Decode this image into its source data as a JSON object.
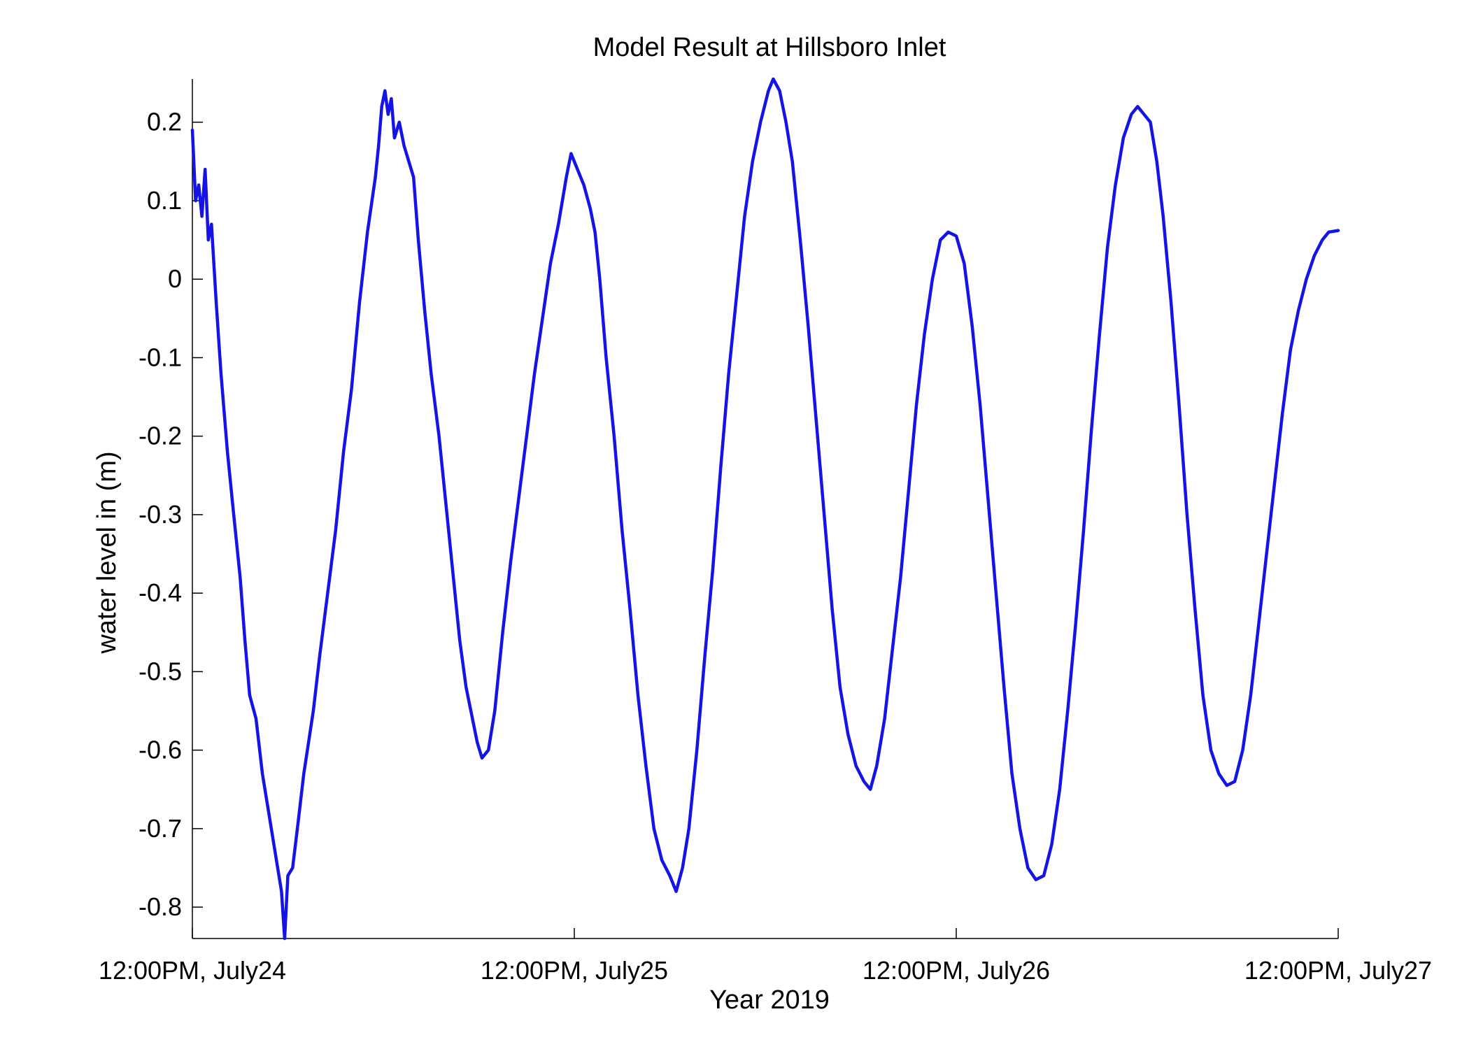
{
  "chart_data": {
    "type": "line",
    "title": "Model Result at Hillsboro Inlet",
    "xlabel": "Year 2019",
    "ylabel": "water level in (m)",
    "x_unit": "hours from 12:00PM, July24",
    "xlim": [
      0,
      72
    ],
    "ylim": [
      -0.84,
      0.255
    ],
    "x_ticks": [
      {
        "value": 0,
        "label": "12:00PM, July24"
      },
      {
        "value": 24,
        "label": "12:00PM, July25"
      },
      {
        "value": 48,
        "label": "12:00PM, July26"
      },
      {
        "value": 72,
        "label": "12:00PM, July27"
      }
    ],
    "y_ticks": [
      {
        "value": 0.2,
        "label": "0.2"
      },
      {
        "value": 0.1,
        "label": "0.1"
      },
      {
        "value": 0,
        "label": "0"
      },
      {
        "value": -0.1,
        "label": "-0.1"
      },
      {
        "value": -0.2,
        "label": "-0.2"
      },
      {
        "value": -0.3,
        "label": "-0.3"
      },
      {
        "value": -0.4,
        "label": "-0.4"
      },
      {
        "value": -0.5,
        "label": "-0.5"
      },
      {
        "value": -0.6,
        "label": "-0.6"
      },
      {
        "value": -0.7,
        "label": "-0.7"
      },
      {
        "value": -0.8,
        "label": "-0.8"
      }
    ],
    "grid": false,
    "legend": "none",
    "series": [
      {
        "color": "#1414e6",
        "points": [
          [
            0.0,
            0.19
          ],
          [
            0.2,
            0.1
          ],
          [
            0.4,
            0.12
          ],
          [
            0.6,
            0.08
          ],
          [
            0.8,
            0.14
          ],
          [
            1.0,
            0.05
          ],
          [
            1.2,
            0.07
          ],
          [
            1.5,
            -0.03
          ],
          [
            1.8,
            -0.12
          ],
          [
            2.2,
            -0.22
          ],
          [
            2.6,
            -0.3
          ],
          [
            3.0,
            -0.38
          ],
          [
            3.3,
            -0.46
          ],
          [
            3.6,
            -0.53
          ],
          [
            4.0,
            -0.56
          ],
          [
            4.4,
            -0.63
          ],
          [
            4.8,
            -0.68
          ],
          [
            5.2,
            -0.73
          ],
          [
            5.6,
            -0.78
          ],
          [
            5.8,
            -0.84
          ],
          [
            6.0,
            -0.76
          ],
          [
            6.3,
            -0.75
          ],
          [
            6.6,
            -0.7
          ],
          [
            7.0,
            -0.63
          ],
          [
            7.3,
            -0.59
          ],
          [
            7.6,
            -0.55
          ],
          [
            8.0,
            -0.48
          ],
          [
            8.5,
            -0.4
          ],
          [
            9.0,
            -0.32
          ],
          [
            9.5,
            -0.22
          ],
          [
            10.0,
            -0.14
          ],
          [
            10.5,
            -0.03
          ],
          [
            11.0,
            0.06
          ],
          [
            11.5,
            0.13
          ],
          [
            11.7,
            0.17
          ],
          [
            11.9,
            0.22
          ],
          [
            12.1,
            0.24
          ],
          [
            12.3,
            0.21
          ],
          [
            12.5,
            0.23
          ],
          [
            12.7,
            0.18
          ],
          [
            13.0,
            0.2
          ],
          [
            13.3,
            0.17
          ],
          [
            13.6,
            0.15
          ],
          [
            13.9,
            0.13
          ],
          [
            14.2,
            0.05
          ],
          [
            14.6,
            -0.04
          ],
          [
            15.0,
            -0.12
          ],
          [
            15.5,
            -0.2
          ],
          [
            16.0,
            -0.3
          ],
          [
            16.4,
            -0.38
          ],
          [
            16.8,
            -0.46
          ],
          [
            17.2,
            -0.52
          ],
          [
            17.6,
            -0.56
          ],
          [
            17.9,
            -0.59
          ],
          [
            18.2,
            -0.61
          ],
          [
            18.6,
            -0.6
          ],
          [
            19.0,
            -0.55
          ],
          [
            19.5,
            -0.45
          ],
          [
            20.0,
            -0.36
          ],
          [
            20.5,
            -0.28
          ],
          [
            21.0,
            -0.2
          ],
          [
            21.5,
            -0.12
          ],
          [
            22.0,
            -0.05
          ],
          [
            22.5,
            0.02
          ],
          [
            23.0,
            0.07
          ],
          [
            23.5,
            0.13
          ],
          [
            23.8,
            0.16
          ],
          [
            24.2,
            0.14
          ],
          [
            24.6,
            0.12
          ],
          [
            25.0,
            0.09
          ],
          [
            25.3,
            0.06
          ],
          [
            25.6,
            0.0
          ],
          [
            26.0,
            -0.1
          ],
          [
            26.5,
            -0.2
          ],
          [
            27.0,
            -0.32
          ],
          [
            27.5,
            -0.42
          ],
          [
            28.0,
            -0.53
          ],
          [
            28.5,
            -0.62
          ],
          [
            29.0,
            -0.7
          ],
          [
            29.5,
            -0.74
          ],
          [
            30.0,
            -0.76
          ],
          [
            30.4,
            -0.78
          ],
          [
            30.8,
            -0.75
          ],
          [
            31.2,
            -0.7
          ],
          [
            31.7,
            -0.6
          ],
          [
            32.2,
            -0.48
          ],
          [
            32.7,
            -0.37
          ],
          [
            33.2,
            -0.24
          ],
          [
            33.7,
            -0.12
          ],
          [
            34.2,
            -0.02
          ],
          [
            34.7,
            0.08
          ],
          [
            35.2,
            0.15
          ],
          [
            35.7,
            0.2
          ],
          [
            36.2,
            0.24
          ],
          [
            36.5,
            0.255
          ],
          [
            36.9,
            0.24
          ],
          [
            37.3,
            0.2
          ],
          [
            37.7,
            0.15
          ],
          [
            38.2,
            0.05
          ],
          [
            38.7,
            -0.06
          ],
          [
            39.2,
            -0.18
          ],
          [
            39.7,
            -0.3
          ],
          [
            40.2,
            -0.42
          ],
          [
            40.7,
            -0.52
          ],
          [
            41.2,
            -0.58
          ],
          [
            41.7,
            -0.62
          ],
          [
            42.2,
            -0.64
          ],
          [
            42.6,
            -0.65
          ],
          [
            43.0,
            -0.62
          ],
          [
            43.5,
            -0.56
          ],
          [
            44.0,
            -0.47
          ],
          [
            44.5,
            -0.38
          ],
          [
            45.0,
            -0.27
          ],
          [
            45.5,
            -0.16
          ],
          [
            46.0,
            -0.07
          ],
          [
            46.5,
            0.0
          ],
          [
            47.0,
            0.05
          ],
          [
            47.5,
            0.06
          ],
          [
            48.0,
            0.055
          ],
          [
            48.5,
            0.02
          ],
          [
            49.0,
            -0.06
          ],
          [
            49.5,
            -0.16
          ],
          [
            50.0,
            -0.28
          ],
          [
            50.5,
            -0.4
          ],
          [
            51.0,
            -0.52
          ],
          [
            51.5,
            -0.63
          ],
          [
            52.0,
            -0.7
          ],
          [
            52.5,
            -0.75
          ],
          [
            53.0,
            -0.765
          ],
          [
            53.5,
            -0.76
          ],
          [
            54.0,
            -0.72
          ],
          [
            54.5,
            -0.65
          ],
          [
            55.0,
            -0.55
          ],
          [
            55.5,
            -0.44
          ],
          [
            56.0,
            -0.32
          ],
          [
            56.5,
            -0.19
          ],
          [
            57.0,
            -0.07
          ],
          [
            57.5,
            0.04
          ],
          [
            58.0,
            0.12
          ],
          [
            58.5,
            0.18
          ],
          [
            59.0,
            0.21
          ],
          [
            59.4,
            0.22
          ],
          [
            59.8,
            0.21
          ],
          [
            60.2,
            0.2
          ],
          [
            60.6,
            0.15
          ],
          [
            61.0,
            0.08
          ],
          [
            61.5,
            -0.03
          ],
          [
            62.0,
            -0.16
          ],
          [
            62.5,
            -0.3
          ],
          [
            63.0,
            -0.42
          ],
          [
            63.5,
            -0.53
          ],
          [
            64.0,
            -0.6
          ],
          [
            64.5,
            -0.63
          ],
          [
            65.0,
            -0.645
          ],
          [
            65.5,
            -0.64
          ],
          [
            66.0,
            -0.6
          ],
          [
            66.5,
            -0.53
          ],
          [
            67.0,
            -0.44
          ],
          [
            67.5,
            -0.35
          ],
          [
            68.0,
            -0.26
          ],
          [
            68.5,
            -0.17
          ],
          [
            69.0,
            -0.09
          ],
          [
            69.5,
            -0.04
          ],
          [
            70.0,
            0.0
          ],
          [
            70.5,
            0.03
          ],
          [
            71.0,
            0.05
          ],
          [
            71.4,
            0.06
          ],
          [
            72.0,
            0.062
          ]
        ]
      }
    ]
  }
}
